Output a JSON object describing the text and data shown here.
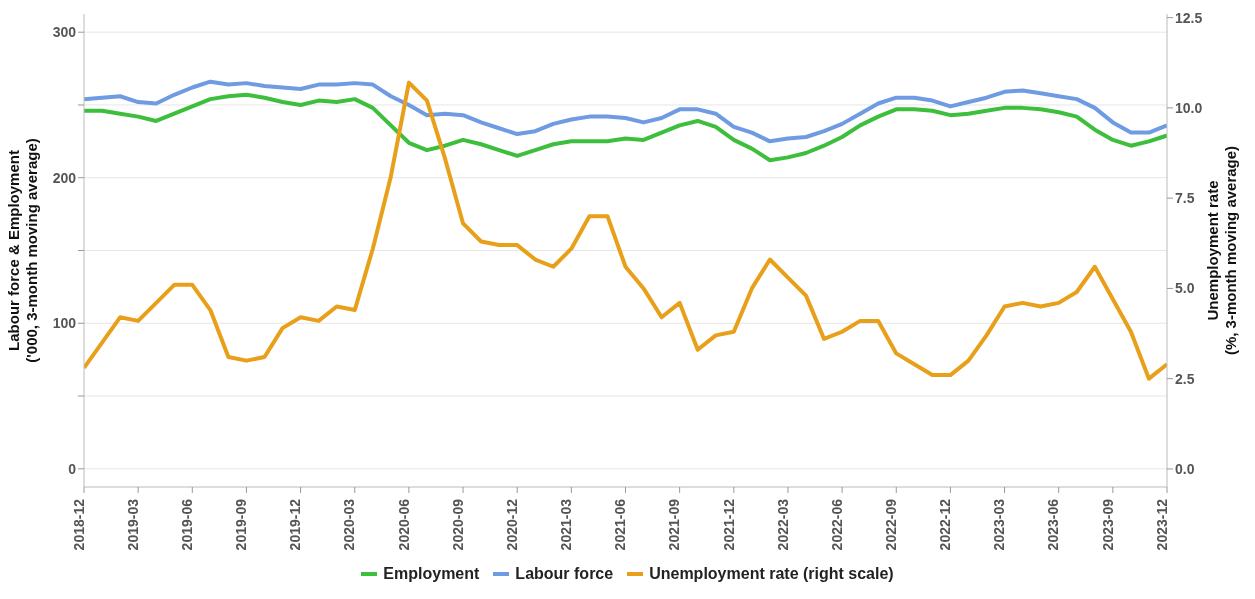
{
  "chart_data": {
    "type": "line",
    "x": [
      "2018-12",
      "2019-01",
      "2019-02",
      "2019-03",
      "2019-04",
      "2019-05",
      "2019-06",
      "2019-07",
      "2019-08",
      "2019-09",
      "2019-10",
      "2019-11",
      "2019-12",
      "2020-01",
      "2020-02",
      "2020-03",
      "2020-04",
      "2020-05",
      "2020-06",
      "2020-07",
      "2020-08",
      "2020-09",
      "2020-10",
      "2020-11",
      "2020-12",
      "2021-01",
      "2021-02",
      "2021-03",
      "2021-04",
      "2021-05",
      "2021-06",
      "2021-07",
      "2021-08",
      "2021-09",
      "2021-10",
      "2021-11",
      "2021-12",
      "2022-01",
      "2022-02",
      "2022-03",
      "2022-04",
      "2022-05",
      "2022-06",
      "2022-07",
      "2022-08",
      "2022-09",
      "2022-10",
      "2022-11",
      "2022-12",
      "2023-01",
      "2023-02",
      "2023-03",
      "2023-04",
      "2023-05",
      "2023-06",
      "2023-07",
      "2023-08",
      "2023-09",
      "2023-10",
      "2023-11",
      "2023-12"
    ],
    "series": [
      {
        "name": "Employment",
        "color": "#3dbf3d",
        "values": [
          246,
          246,
          244,
          242,
          239,
          244,
          249,
          254,
          256,
          257,
          255,
          252,
          250,
          253,
          252,
          254,
          248,
          236,
          224,
          219,
          222,
          226,
          223,
          219,
          215,
          219,
          223,
          225,
          225,
          225,
          227,
          226,
          231,
          236,
          239,
          235,
          226,
          220,
          212,
          214,
          217,
          222,
          228,
          236,
          242,
          247,
          247,
          246,
          243,
          244,
          246,
          248,
          248,
          247,
          245,
          242,
          233,
          226,
          222,
          225,
          229
        ]
      },
      {
        "name": "Labour force",
        "color": "#6f9be3",
        "values": [
          254,
          255,
          256,
          252,
          251,
          257,
          262,
          266,
          264,
          265,
          263,
          262,
          261,
          264,
          264,
          265,
          264,
          256,
          250,
          243,
          244,
          243,
          238,
          234,
          230,
          232,
          237,
          240,
          242,
          242,
          241,
          238,
          241,
          247,
          247,
          244,
          235,
          231,
          225,
          227,
          228,
          232,
          237,
          244,
          251,
          255,
          255,
          253,
          249,
          252,
          255,
          259,
          260,
          258,
          256,
          254,
          248,
          238,
          231,
          231,
          236
        ]
      },
      {
        "name": "Unemployment rate (right scale)",
        "color": "#e8a01a",
        "axis": "y2",
        "values": [
          2.8,
          3.5,
          4.2,
          4.1,
          4.6,
          5.1,
          5.1,
          4.4,
          3.1,
          3.0,
          3.1,
          3.9,
          4.2,
          4.1,
          4.5,
          4.4,
          6.1,
          8.1,
          10.7,
          10.2,
          8.6,
          6.8,
          6.3,
          6.2,
          6.2,
          5.8,
          5.6,
          6.1,
          7.0,
          7.0,
          5.6,
          5.0,
          4.2,
          4.6,
          3.3,
          3.7,
          3.8,
          5.0,
          5.8,
          5.3,
          4.8,
          3.6,
          3.8,
          4.1,
          4.1,
          3.2,
          2.9,
          2.6,
          2.6,
          3.0,
          3.7,
          4.5,
          4.6,
          4.5,
          4.6,
          4.9,
          5.6,
          4.7,
          3.8,
          2.5,
          2.9
        ]
      }
    ],
    "xlim": [
      "2018-12",
      "2023-12"
    ],
    "xticks": [
      "2018-12",
      "2019-03",
      "2019-06",
      "2019-09",
      "2019-12",
      "2020-03",
      "2020-06",
      "2020-09",
      "2020-12",
      "2021-03",
      "2021-06",
      "2021-09",
      "2021-12",
      "2022-03",
      "2022-06",
      "2022-09",
      "2022-12",
      "2023-03",
      "2023-06",
      "2023-09",
      "2023-12"
    ],
    "ylim": [
      -12.5,
      312.5
    ],
    "yticks": [
      0,
      {
        "value": 50,
        "label": null
      },
      100,
      {
        "value": 150,
        "label": null
      },
      200,
      {
        "value": 250,
        "label": null
      },
      300
    ],
    "y2lim": [
      -0.5,
      12.6
    ],
    "y2ticks": [
      {
        "value": 0,
        "label": "0.0"
      },
      2.5,
      {
        "value": 5,
        "label": "5.0"
      },
      7.5,
      {
        "value": 10,
        "label": "10.0"
      },
      12.5
    ],
    "ylabel": "Labour force & Employment\n('000, 3-month moving average)",
    "y2label": "Unemployment rate\n(%, 3-month moving average)",
    "grid": "y",
    "legend": "bottom",
    "marker": "none",
    "line_style": "solid"
  }
}
